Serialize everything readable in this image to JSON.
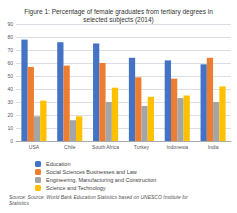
{
  "chart_data": {
    "type": "bar",
    "title": "Figure 1: Percentage of female graduates from tertiary degrees in\nselected subjects (2014)",
    "categories": [
      "USA",
      "Chile",
      "South Africa",
      "Turkey",
      "Indonesia",
      "India"
    ],
    "series": [
      {
        "name": "Education",
        "color": "#4472C4",
        "values": [
          78,
          76,
          75,
          64,
          62,
          59
        ]
      },
      {
        "name": "Social Sciences Businesses and Law",
        "color": "#ED7D31",
        "values": [
          57,
          58,
          60,
          49,
          48,
          64
        ]
      },
      {
        "name": "Engineering, Manufacturing and Construction",
        "color": "#A5A5A5",
        "values": [
          19,
          16,
          30,
          27,
          33,
          30
        ]
      },
      {
        "name": "Science and Technology",
        "color": "#FFC000",
        "values": [
          31,
          19,
          41,
          34,
          35,
          42
        ]
      }
    ],
    "ylim": [
      0,
      90
    ],
    "yticks": [
      0,
      10,
      20,
      30,
      40,
      50,
      60,
      70,
      80,
      90
    ],
    "grid": true,
    "legend": "bottom",
    "annotations": [
      "Source: Source: World Bank Education Statistics based on UNESCO Institute for\nStatistics"
    ]
  }
}
